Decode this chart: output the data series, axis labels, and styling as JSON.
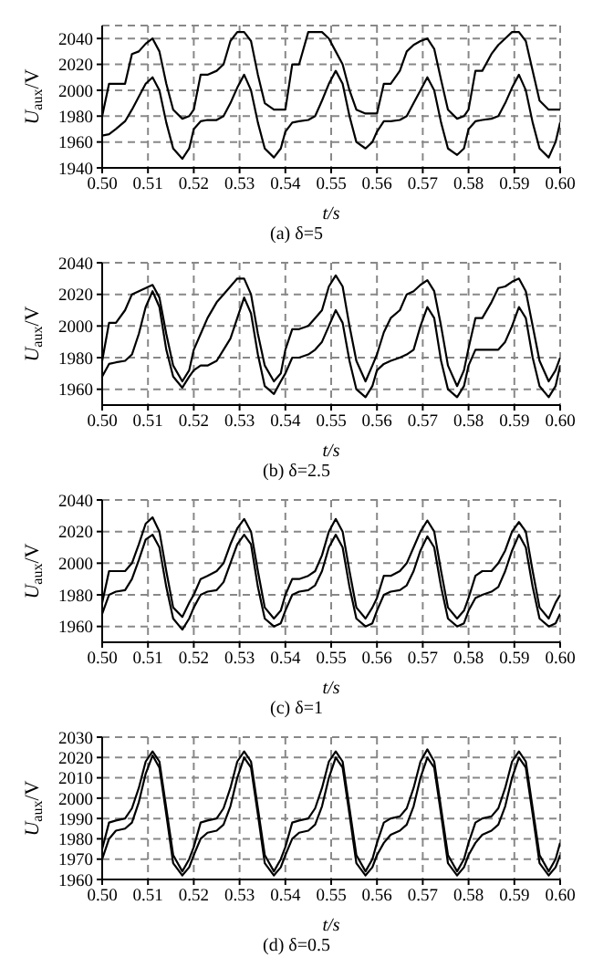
{
  "chart_data": [
    {
      "type": "line",
      "title": "(a) δ=5",
      "xlabel": "t/s",
      "ylabel": "U$_{aux}$/V",
      "grid": true,
      "xlim": [
        0.5,
        0.6
      ],
      "ylim": [
        1940,
        2050
      ],
      "yticks": [
        1940,
        1960,
        1980,
        2000,
        2020,
        2040
      ],
      "xticks": [
        {
          "value": 0.5,
          "label": "0.50"
        },
        {
          "value": 0.51,
          "label": "0.51"
        },
        {
          "value": 0.52,
          "label": "0.52"
        },
        {
          "value": 0.53,
          "label": "0.53"
        },
        {
          "value": 0.54,
          "label": "0.54"
        },
        {
          "value": 0.55,
          "label": "0.55"
        },
        {
          "value": 0.56,
          "label": "0.56"
        },
        {
          "value": 0.57,
          "label": "0.57"
        },
        {
          "value": 0.58,
          "label": "0.58"
        },
        {
          "value": 0.59,
          "label": "0.59"
        },
        {
          "value": 0.6,
          "label": "0.60"
        }
      ],
      "x": [
        0.5,
        0.5015,
        0.503,
        0.505,
        0.5065,
        0.508,
        0.5095,
        0.511,
        0.5125,
        0.514,
        0.5155,
        0.5175,
        0.519,
        0.52,
        0.5215,
        0.523,
        0.525,
        0.5265,
        0.528,
        0.5295,
        0.531,
        0.5325,
        0.534,
        0.5355,
        0.5375,
        0.539,
        0.54,
        0.5415,
        0.543,
        0.545,
        0.5465,
        0.548,
        0.5495,
        0.551,
        0.5525,
        0.554,
        0.5555,
        0.5575,
        0.559,
        0.56,
        0.5615,
        0.563,
        0.565,
        0.5665,
        0.568,
        0.5695,
        0.571,
        0.5725,
        0.574,
        0.5755,
        0.5775,
        0.579,
        0.58,
        0.5815,
        0.583,
        0.585,
        0.5865,
        0.588,
        0.5895,
        0.591,
        0.5925,
        0.594,
        0.5955,
        0.5975,
        0.599,
        0.6
      ],
      "series": [
        {
          "color": "#000000",
          "values": [
            1980,
            2005,
            2005,
            2005,
            2028,
            2030,
            2036,
            2040,
            2030,
            2005,
            1985,
            1978,
            1980,
            1985,
            2012,
            2012,
            2015,
            2020,
            2038,
            2045,
            2045,
            2038,
            2012,
            1990,
            1985,
            1985,
            1985,
            2020,
            2020,
            2045,
            2045,
            2045,
            2040,
            2030,
            2020,
            2000,
            1985,
            1982,
            1982,
            1982,
            2005,
            2005,
            2015,
            2030,
            2035,
            2038,
            2040,
            2032,
            2008,
            1985,
            1978,
            1980,
            1985,
            2015,
            2015,
            2028,
            2035,
            2040,
            2045,
            2045,
            2038,
            2015,
            1992,
            1985,
            1985,
            1985
          ]
        },
        {
          "color": "#000000",
          "values": [
            1965,
            1966,
            1970,
            1976,
            1985,
            1995,
            2005,
            2010,
            2000,
            1975,
            1955,
            1947,
            1955,
            1970,
            1976,
            1977,
            1977,
            1980,
            1990,
            2002,
            2012,
            2000,
            1975,
            1955,
            1948,
            1955,
            1968,
            1975,
            1976,
            1977,
            1980,
            1992,
            2005,
            2015,
            2005,
            1980,
            1960,
            1955,
            1960,
            1968,
            1976,
            1976,
            1977,
            1980,
            1990,
            2000,
            2010,
            2000,
            1975,
            1955,
            1950,
            1955,
            1970,
            1976,
            1977,
            1978,
            1980,
            1990,
            2002,
            2012,
            2000,
            1975,
            1955,
            1948,
            1960,
            1975
          ]
        }
      ]
    },
    {
      "type": "line",
      "title": "(b) δ=2.5",
      "xlabel": "t/s",
      "ylabel": "U$_{aux}$/V",
      "grid": true,
      "xlim": [
        0.5,
        0.6
      ],
      "ylim": [
        1950,
        2040
      ],
      "yticks": [
        1960,
        1980,
        2000,
        2020,
        2040
      ],
      "xticks": [
        {
          "value": 0.5,
          "label": "0.50"
        },
        {
          "value": 0.51,
          "label": "0.51"
        },
        {
          "value": 0.52,
          "label": "0.52"
        },
        {
          "value": 0.53,
          "label": "0.53"
        },
        {
          "value": 0.54,
          "label": "0.54"
        },
        {
          "value": 0.55,
          "label": "0.55"
        },
        {
          "value": 0.56,
          "label": "0.56"
        },
        {
          "value": 0.57,
          "label": "0.57"
        },
        {
          "value": 0.58,
          "label": "0.58"
        },
        {
          "value": 0.59,
          "label": "0.59"
        },
        {
          "value": 0.6,
          "label": "0.60"
        }
      ],
      "x": [
        0.5,
        0.5015,
        0.503,
        0.505,
        0.5065,
        0.508,
        0.5095,
        0.511,
        0.5125,
        0.514,
        0.5155,
        0.5175,
        0.519,
        0.52,
        0.5215,
        0.523,
        0.525,
        0.5265,
        0.528,
        0.5295,
        0.531,
        0.5325,
        0.534,
        0.5355,
        0.5375,
        0.539,
        0.54,
        0.5415,
        0.543,
        0.545,
        0.5465,
        0.548,
        0.5495,
        0.551,
        0.5525,
        0.554,
        0.5555,
        0.5575,
        0.559,
        0.56,
        0.5615,
        0.563,
        0.565,
        0.5665,
        0.568,
        0.5695,
        0.571,
        0.5725,
        0.574,
        0.5755,
        0.5775,
        0.579,
        0.58,
        0.5815,
        0.583,
        0.585,
        0.5865,
        0.588,
        0.5895,
        0.591,
        0.5925,
        0.594,
        0.5955,
        0.5975,
        0.599,
        0.6
      ],
      "series": [
        {
          "color": "#000000",
          "values": [
            1978,
            2002,
            2002,
            2010,
            2020,
            2022,
            2024,
            2026,
            2018,
            1995,
            1975,
            1965,
            1972,
            1985,
            1995,
            2005,
            2015,
            2020,
            2025,
            2030,
            2030,
            2020,
            1995,
            1975,
            1965,
            1970,
            1985,
            1998,
            1998,
            2000,
            2005,
            2010,
            2025,
            2032,
            2025,
            2000,
            1978,
            1965,
            1975,
            1982,
            1996,
            2005,
            2010,
            2020,
            2022,
            2026,
            2029,
            2022,
            2000,
            1975,
            1962,
            1972,
            1986,
            2005,
            2005,
            2015,
            2024,
            2025,
            2028,
            2030,
            2022,
            2000,
            1978,
            1965,
            1972,
            1980
          ]
        },
        {
          "color": "#000000",
          "values": [
            1968,
            1976,
            1977,
            1978,
            1982,
            1995,
            2012,
            2022,
            2012,
            1985,
            1968,
            1961,
            1968,
            1972,
            1975,
            1975,
            1978,
            1985,
            1992,
            2005,
            2018,
            2008,
            1982,
            1962,
            1957,
            1965,
            1970,
            1980,
            1980,
            1982,
            1985,
            1990,
            2000,
            2010,
            2002,
            1978,
            1960,
            1955,
            1962,
            1972,
            1976,
            1978,
            1980,
            1982,
            1985,
            2000,
            2012,
            2005,
            1978,
            1960,
            1955,
            1962,
            1975,
            1985,
            1985,
            1985,
            1985,
            1990,
            2000,
            2012,
            2005,
            1980,
            1962,
            1955,
            1962,
            1975
          ]
        }
      ]
    },
    {
      "type": "line",
      "title": "(c) δ=1",
      "xlabel": "t/s",
      "ylabel": "U$_{aux}$/V",
      "grid": true,
      "xlim": [
        0.5,
        0.6
      ],
      "ylim": [
        1950,
        2040
      ],
      "yticks": [
        1960,
        1980,
        2000,
        2020,
        2040
      ],
      "xticks": [
        {
          "value": 0.5,
          "label": "0.50"
        },
        {
          "value": 0.51,
          "label": "0.51"
        },
        {
          "value": 0.52,
          "label": "0.52"
        },
        {
          "value": 0.53,
          "label": "0.53"
        },
        {
          "value": 0.54,
          "label": "0.54"
        },
        {
          "value": 0.55,
          "label": "0.55"
        },
        {
          "value": 0.56,
          "label": "0.56"
        },
        {
          "value": 0.57,
          "label": "0.57"
        },
        {
          "value": 0.58,
          "label": "0.58"
        },
        {
          "value": 0.59,
          "label": "0.59"
        },
        {
          "value": 0.6,
          "label": "0.60"
        }
      ],
      "x": [
        0.5,
        0.5015,
        0.503,
        0.505,
        0.5065,
        0.508,
        0.5095,
        0.511,
        0.5125,
        0.514,
        0.5155,
        0.5175,
        0.519,
        0.52,
        0.5215,
        0.523,
        0.525,
        0.5265,
        0.528,
        0.5295,
        0.531,
        0.5325,
        0.534,
        0.5355,
        0.5375,
        0.539,
        0.54,
        0.5415,
        0.543,
        0.545,
        0.5465,
        0.548,
        0.5495,
        0.551,
        0.5525,
        0.554,
        0.5555,
        0.5575,
        0.559,
        0.56,
        0.5615,
        0.563,
        0.565,
        0.5665,
        0.568,
        0.5695,
        0.571,
        0.5725,
        0.574,
        0.5755,
        0.5775,
        0.579,
        0.58,
        0.5815,
        0.583,
        0.585,
        0.5865,
        0.588,
        0.5895,
        0.591,
        0.5925,
        0.594,
        0.5955,
        0.5975,
        0.599,
        0.6
      ],
      "series": [
        {
          "color": "#000000",
          "values": [
            1975,
            1995,
            1995,
            1995,
            2000,
            2012,
            2025,
            2029,
            2020,
            1995,
            1972,
            1966,
            1975,
            1980,
            1990,
            1992,
            1995,
            2000,
            2012,
            2022,
            2028,
            2020,
            1995,
            1972,
            1965,
            1970,
            1980,
            1990,
            1990,
            1992,
            1995,
            2005,
            2020,
            2028,
            2020,
            1995,
            1972,
            1965,
            1972,
            1978,
            1992,
            1992,
            1995,
            2000,
            2010,
            2020,
            2027,
            2020,
            1995,
            1972,
            1965,
            1970,
            1978,
            1992,
            1995,
            1995,
            2000,
            2008,
            2020,
            2026,
            2020,
            1995,
            1972,
            1965,
            1975,
            1980
          ]
        },
        {
          "color": "#000000",
          "values": [
            1968,
            1980,
            1982,
            1983,
            1990,
            2002,
            2015,
            2018,
            2010,
            1985,
            1965,
            1958,
            1965,
            1972,
            1980,
            1982,
            1983,
            1988,
            2000,
            2012,
            2018,
            2012,
            1985,
            1965,
            1960,
            1962,
            1970,
            1980,
            1982,
            1983,
            1986,
            1995,
            2010,
            2018,
            2010,
            1985,
            1965,
            1960,
            1962,
            1970,
            1980,
            1982,
            1983,
            1986,
            1995,
            2008,
            2017,
            2010,
            1985,
            1965,
            1960,
            1962,
            1970,
            1978,
            1980,
            1982,
            1985,
            1995,
            2008,
            2018,
            2010,
            1985,
            1965,
            1960,
            1962,
            1968
          ]
        }
      ]
    },
    {
      "type": "line",
      "title": "(d) δ=0.5",
      "xlabel": "t/s",
      "ylabel": "U$_{aux}$/V",
      "grid": true,
      "xlim": [
        0.5,
        0.6
      ],
      "ylim": [
        1960,
        2030
      ],
      "yticks": [
        1960,
        1970,
        1980,
        1990,
        2000,
        2010,
        2020,
        2030
      ],
      "xticks": [
        {
          "value": 0.5,
          "label": "0.50"
        },
        {
          "value": 0.51,
          "label": "0.51"
        },
        {
          "value": 0.52,
          "label": "0.52"
        },
        {
          "value": 0.53,
          "label": "0.53"
        },
        {
          "value": 0.54,
          "label": "0.54"
        },
        {
          "value": 0.55,
          "label": "0.55"
        },
        {
          "value": 0.56,
          "label": "0.56"
        },
        {
          "value": 0.57,
          "label": "0.57"
        },
        {
          "value": 0.58,
          "label": "0.58"
        },
        {
          "value": 0.59,
          "label": "0.59"
        },
        {
          "value": 0.6,
          "label": "0.60"
        }
      ],
      "x": [
        0.5,
        0.5015,
        0.503,
        0.505,
        0.5065,
        0.508,
        0.5095,
        0.511,
        0.5125,
        0.514,
        0.5155,
        0.5175,
        0.519,
        0.52,
        0.5215,
        0.523,
        0.525,
        0.5265,
        0.528,
        0.5295,
        0.531,
        0.5325,
        0.534,
        0.5355,
        0.5375,
        0.539,
        0.54,
        0.5415,
        0.543,
        0.545,
        0.5465,
        0.548,
        0.5495,
        0.551,
        0.5525,
        0.554,
        0.5555,
        0.5575,
        0.559,
        0.56,
        0.5615,
        0.563,
        0.565,
        0.5665,
        0.568,
        0.5695,
        0.571,
        0.5725,
        0.574,
        0.5755,
        0.5775,
        0.579,
        0.58,
        0.5815,
        0.583,
        0.585,
        0.5865,
        0.588,
        0.5895,
        0.591,
        0.5925,
        0.594,
        0.5955,
        0.5975,
        0.599,
        0.6
      ],
      "series": [
        {
          "color": "#000000",
          "values": [
            1975,
            1988,
            1989,
            1990,
            1995,
            2005,
            2018,
            2023,
            2018,
            1995,
            1972,
            1964,
            1970,
            1976,
            1988,
            1989,
            1990,
            1995,
            2005,
            2018,
            2023,
            2018,
            1995,
            1972,
            1964,
            1970,
            1976,
            1988,
            1989,
            1990,
            1995,
            2005,
            2018,
            2023,
            2018,
            1995,
            1972,
            1964,
            1970,
            1978,
            1988,
            1990,
            1991,
            1995,
            2005,
            2018,
            2024,
            2018,
            1995,
            1972,
            1964,
            1970,
            1978,
            1988,
            1990,
            1991,
            1995,
            2005,
            2018,
            2023,
            2018,
            1995,
            1972,
            1964,
            1970,
            1978
          ]
        },
        {
          "color": "#000000",
          "values": [
            1970,
            1980,
            1984,
            1985,
            1988,
            1998,
            2012,
            2021,
            2015,
            1992,
            1968,
            1962,
            1966,
            1972,
            1980,
            1983,
            1984,
            1987,
            1996,
            2010,
            2020,
            2015,
            1992,
            1968,
            1962,
            1966,
            1972,
            1980,
            1983,
            1984,
            1987,
            1996,
            2010,
            2020,
            2015,
            1992,
            1968,
            1962,
            1966,
            1972,
            1978,
            1982,
            1984,
            1987,
            1996,
            2010,
            2020,
            2015,
            1992,
            1968,
            1962,
            1966,
            1972,
            1978,
            1982,
            1984,
            1987,
            1996,
            2010,
            2020,
            2015,
            1992,
            1968,
            1962,
            1966,
            1972
          ]
        }
      ]
    }
  ]
}
